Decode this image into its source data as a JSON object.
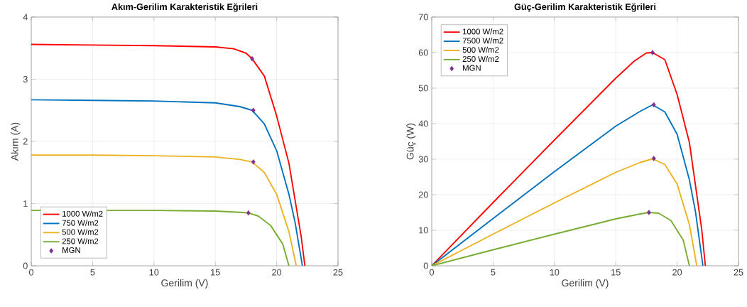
{
  "chart_data": [
    {
      "type": "line",
      "title": "Akım-Gerilim Karakteristik Eğrileri",
      "xlabel": "Gerilim (V)",
      "ylabel": "Akım (A)",
      "xlim": [
        0,
        25
      ],
      "ylim": [
        0,
        4
      ],
      "xticks": [
        0,
        5,
        10,
        15,
        20,
        25
      ],
      "yticks": [
        0,
        1,
        2,
        3,
        4
      ],
      "grid": true,
      "legend": "bottom left",
      "series": [
        {
          "name": "1000 W/m2",
          "color": "#ff0000",
          "x": [
            0,
            5,
            10,
            15,
            16.5,
            17.5,
            18,
            19,
            20,
            21,
            22,
            22.3
          ],
          "values": [
            3.56,
            3.55,
            3.54,
            3.52,
            3.49,
            3.42,
            3.33,
            3.05,
            2.41,
            1.65,
            0.47,
            0
          ]
        },
        {
          "name": "750 W/m2",
          "color": "#0072bd",
          "x": [
            0,
            5,
            10,
            15,
            17,
            18,
            19,
            20,
            21,
            21.5,
            22.1
          ],
          "values": [
            2.67,
            2.66,
            2.65,
            2.62,
            2.56,
            2.5,
            2.28,
            1.85,
            1.15,
            0.7,
            0
          ]
        },
        {
          "name": "500 W/m2",
          "color": "#edb120",
          "x": [
            0,
            5,
            10,
            15,
            17,
            18,
            19,
            20,
            21,
            21.6
          ],
          "values": [
            1.78,
            1.78,
            1.77,
            1.75,
            1.71,
            1.67,
            1.5,
            1.15,
            0.55,
            0
          ]
        },
        {
          "name": "250 W/m2",
          "color": "#77ac30",
          "x": [
            0,
            5,
            10,
            15,
            17,
            17.7,
            18.5,
            19.5,
            20.5,
            21
          ],
          "values": [
            0.89,
            null,
            0.89,
            0.88,
            0.86,
            0.85,
            0.8,
            0.65,
            0.35,
            0
          ]
        },
        {
          "name": "MGN",
          "type": "scatter",
          "marker": "diamond",
          "color": "#7e2f8e",
          "x": [
            18,
            18.1,
            18.1,
            17.7
          ],
          "values": [
            3.33,
            2.5,
            1.67,
            0.85
          ]
        }
      ]
    },
    {
      "type": "line",
      "title": "Güç-Gerilim Karakteristik Eğrileri",
      "xlabel": "Gerilim (V)",
      "ylabel": "Güç (W)",
      "xlim": [
        0,
        25
      ],
      "ylim": [
        0,
        70
      ],
      "xticks": [
        0,
        5,
        10,
        15,
        20,
        25
      ],
      "yticks": [
        0,
        10,
        20,
        30,
        40,
        50,
        60,
        70
      ],
      "grid": true,
      "legend": "top left",
      "series": [
        {
          "name": "1000 W/m2",
          "color": "#ff0000",
          "x": [
            0,
            5,
            10,
            15,
            16.5,
            17.5,
            18,
            19,
            20,
            21,
            22,
            22.3
          ],
          "values": [
            0,
            17.8,
            35.4,
            52.8,
            57.6,
            59.9,
            60,
            58,
            48.2,
            34.7,
            10.3,
            0
          ]
        },
        {
          "name": "7500 W/m2",
          "color": "#0072bd",
          "x": [
            0,
            5,
            10,
            15,
            17,
            18,
            19,
            20,
            21,
            21.5,
            22.1
          ],
          "values": [
            0,
            13.3,
            26.5,
            39.3,
            43.5,
            45.3,
            43.3,
            37,
            24.2,
            15.1,
            0
          ]
        },
        {
          "name": "500 W/m2",
          "color": "#edb120",
          "x": [
            0,
            5,
            10,
            15,
            17,
            18,
            19,
            20,
            21,
            21.6
          ],
          "values": [
            0,
            8.9,
            17.7,
            26.3,
            29.1,
            30.1,
            28.5,
            23,
            11.6,
            0
          ]
        },
        {
          "name": "250 W/m2",
          "color": "#77ac30",
          "x": [
            0,
            5,
            10,
            15,
            17,
            17.7,
            18.5,
            19.5,
            20.5,
            21
          ],
          "values": [
            0,
            4.5,
            8.9,
            13.2,
            14.6,
            15,
            14.8,
            12.7,
            7.2,
            0
          ]
        },
        {
          "name": "MGN",
          "type": "scatter",
          "marker": "diamond",
          "color": "#7e2f8e",
          "x": [
            18,
            18.1,
            18.1,
            17.7
          ],
          "values": [
            60,
            45.3,
            30.2,
            15
          ]
        }
      ]
    }
  ]
}
